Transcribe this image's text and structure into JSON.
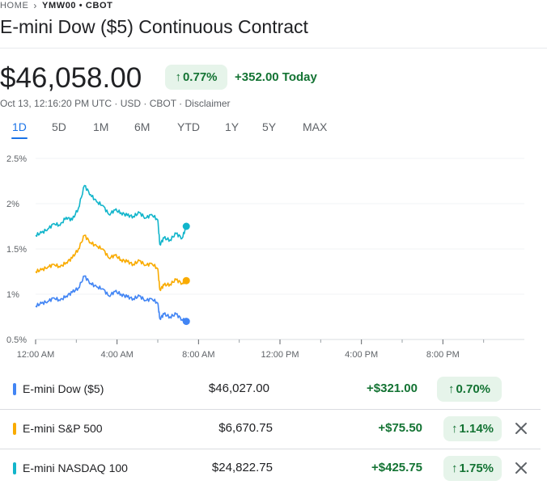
{
  "breadcrumb": {
    "home": "HOME",
    "current": "YMW00 • CBOT"
  },
  "title": "E-mini Dow ($5) Continuous Contract",
  "price": "$46,058.00",
  "change_pct": "0.77%",
  "change_abs": "+352.00 Today",
  "meta": {
    "text": "Oct 13, 12:16:20 PM UTC · USD · CBOT · ",
    "disclaimer": "Disclaimer"
  },
  "tabs": [
    "1D",
    "5D",
    "1M",
    "6M",
    "YTD",
    "1Y",
    "5Y",
    "MAX"
  ],
  "active_tab": "1D",
  "icons": {
    "up_arrow": "arrow-up-icon",
    "close": "close-icon",
    "chevron": "chevron-right-icon"
  },
  "colors": {
    "positive": "#137333",
    "positive_bg": "#e6f4ea",
    "accent": "#1a73e8"
  },
  "chart_data": {
    "type": "line",
    "y_ticks": [
      "2.5%",
      "2%",
      "1.5%",
      "1%",
      "0.5%"
    ],
    "ylim": [
      0.5,
      2.5
    ],
    "x_ticks": [
      "12:00 AM",
      "4:00 AM",
      "8:00 AM",
      "12:00 PM",
      "4:00 PM",
      "8:00 PM"
    ],
    "x_hours": [
      0,
      4,
      8,
      12,
      16,
      20
    ],
    "xlim": [
      0,
      24
    ],
    "grid": true,
    "series": [
      {
        "name": "E-mini NASDAQ 100",
        "color": "#12b5cb",
        "x": [
          0,
          0.3,
          0.6,
          0.9,
          1.2,
          1.5,
          1.8,
          2.1,
          2.4,
          2.7,
          3.0,
          3.3,
          3.6,
          3.9,
          4.2,
          4.5,
          4.8,
          5.1,
          5.4,
          5.7,
          6.0,
          6.1,
          6.3,
          6.6,
          6.9,
          7.2,
          7.4
        ],
        "y": [
          1.65,
          1.68,
          1.72,
          1.78,
          1.76,
          1.85,
          1.82,
          1.95,
          2.2,
          2.1,
          2.02,
          1.98,
          1.88,
          1.93,
          1.9,
          1.87,
          1.86,
          1.9,
          1.84,
          1.88,
          1.82,
          1.55,
          1.62,
          1.6,
          1.67,
          1.62,
          1.75
        ]
      },
      {
        "name": "E-mini S&P 500",
        "color": "#f9ab00",
        "x": [
          0,
          0.3,
          0.6,
          0.9,
          1.2,
          1.5,
          1.8,
          2.1,
          2.4,
          2.7,
          3.0,
          3.3,
          3.6,
          3.9,
          4.2,
          4.5,
          4.8,
          5.1,
          5.4,
          5.7,
          6.0,
          6.1,
          6.3,
          6.6,
          6.9,
          7.2,
          7.4
        ],
        "y": [
          1.25,
          1.27,
          1.3,
          1.33,
          1.3,
          1.35,
          1.4,
          1.5,
          1.65,
          1.57,
          1.53,
          1.5,
          1.4,
          1.43,
          1.38,
          1.36,
          1.33,
          1.37,
          1.32,
          1.34,
          1.28,
          1.05,
          1.1,
          1.11,
          1.16,
          1.12,
          1.15
        ]
      },
      {
        "name": "E-mini Dow ($5)",
        "color": "#4285f4",
        "x": [
          0,
          0.3,
          0.6,
          0.9,
          1.2,
          1.5,
          1.8,
          2.1,
          2.4,
          2.7,
          3.0,
          3.3,
          3.6,
          3.9,
          4.2,
          4.5,
          4.8,
          5.1,
          5.4,
          5.7,
          6.0,
          6.1,
          6.3,
          6.6,
          6.9,
          7.2,
          7.4
        ],
        "y": [
          0.87,
          0.9,
          0.92,
          0.96,
          0.93,
          0.98,
          1.02,
          1.07,
          1.2,
          1.12,
          1.08,
          1.06,
          0.98,
          1.03,
          1.0,
          0.97,
          0.95,
          0.98,
          0.93,
          0.95,
          0.9,
          0.73,
          0.78,
          0.75,
          0.78,
          0.72,
          0.7
        ]
      }
    ]
  },
  "table": [
    {
      "name": "E-mini Dow ($5)",
      "price": "$46,027.00",
      "change": "+$321.00",
      "pct": "0.70%",
      "color": "#4285f4",
      "removable": false
    },
    {
      "name": "E-mini S&P 500",
      "price": "$6,670.75",
      "change": "+$75.50",
      "pct": "1.14%",
      "color": "#f9ab00",
      "removable": true
    },
    {
      "name": "E-mini NASDAQ 100",
      "price": "$24,822.75",
      "change": "+$425.75",
      "pct": "1.75%",
      "color": "#12b5cb",
      "removable": true
    }
  ]
}
